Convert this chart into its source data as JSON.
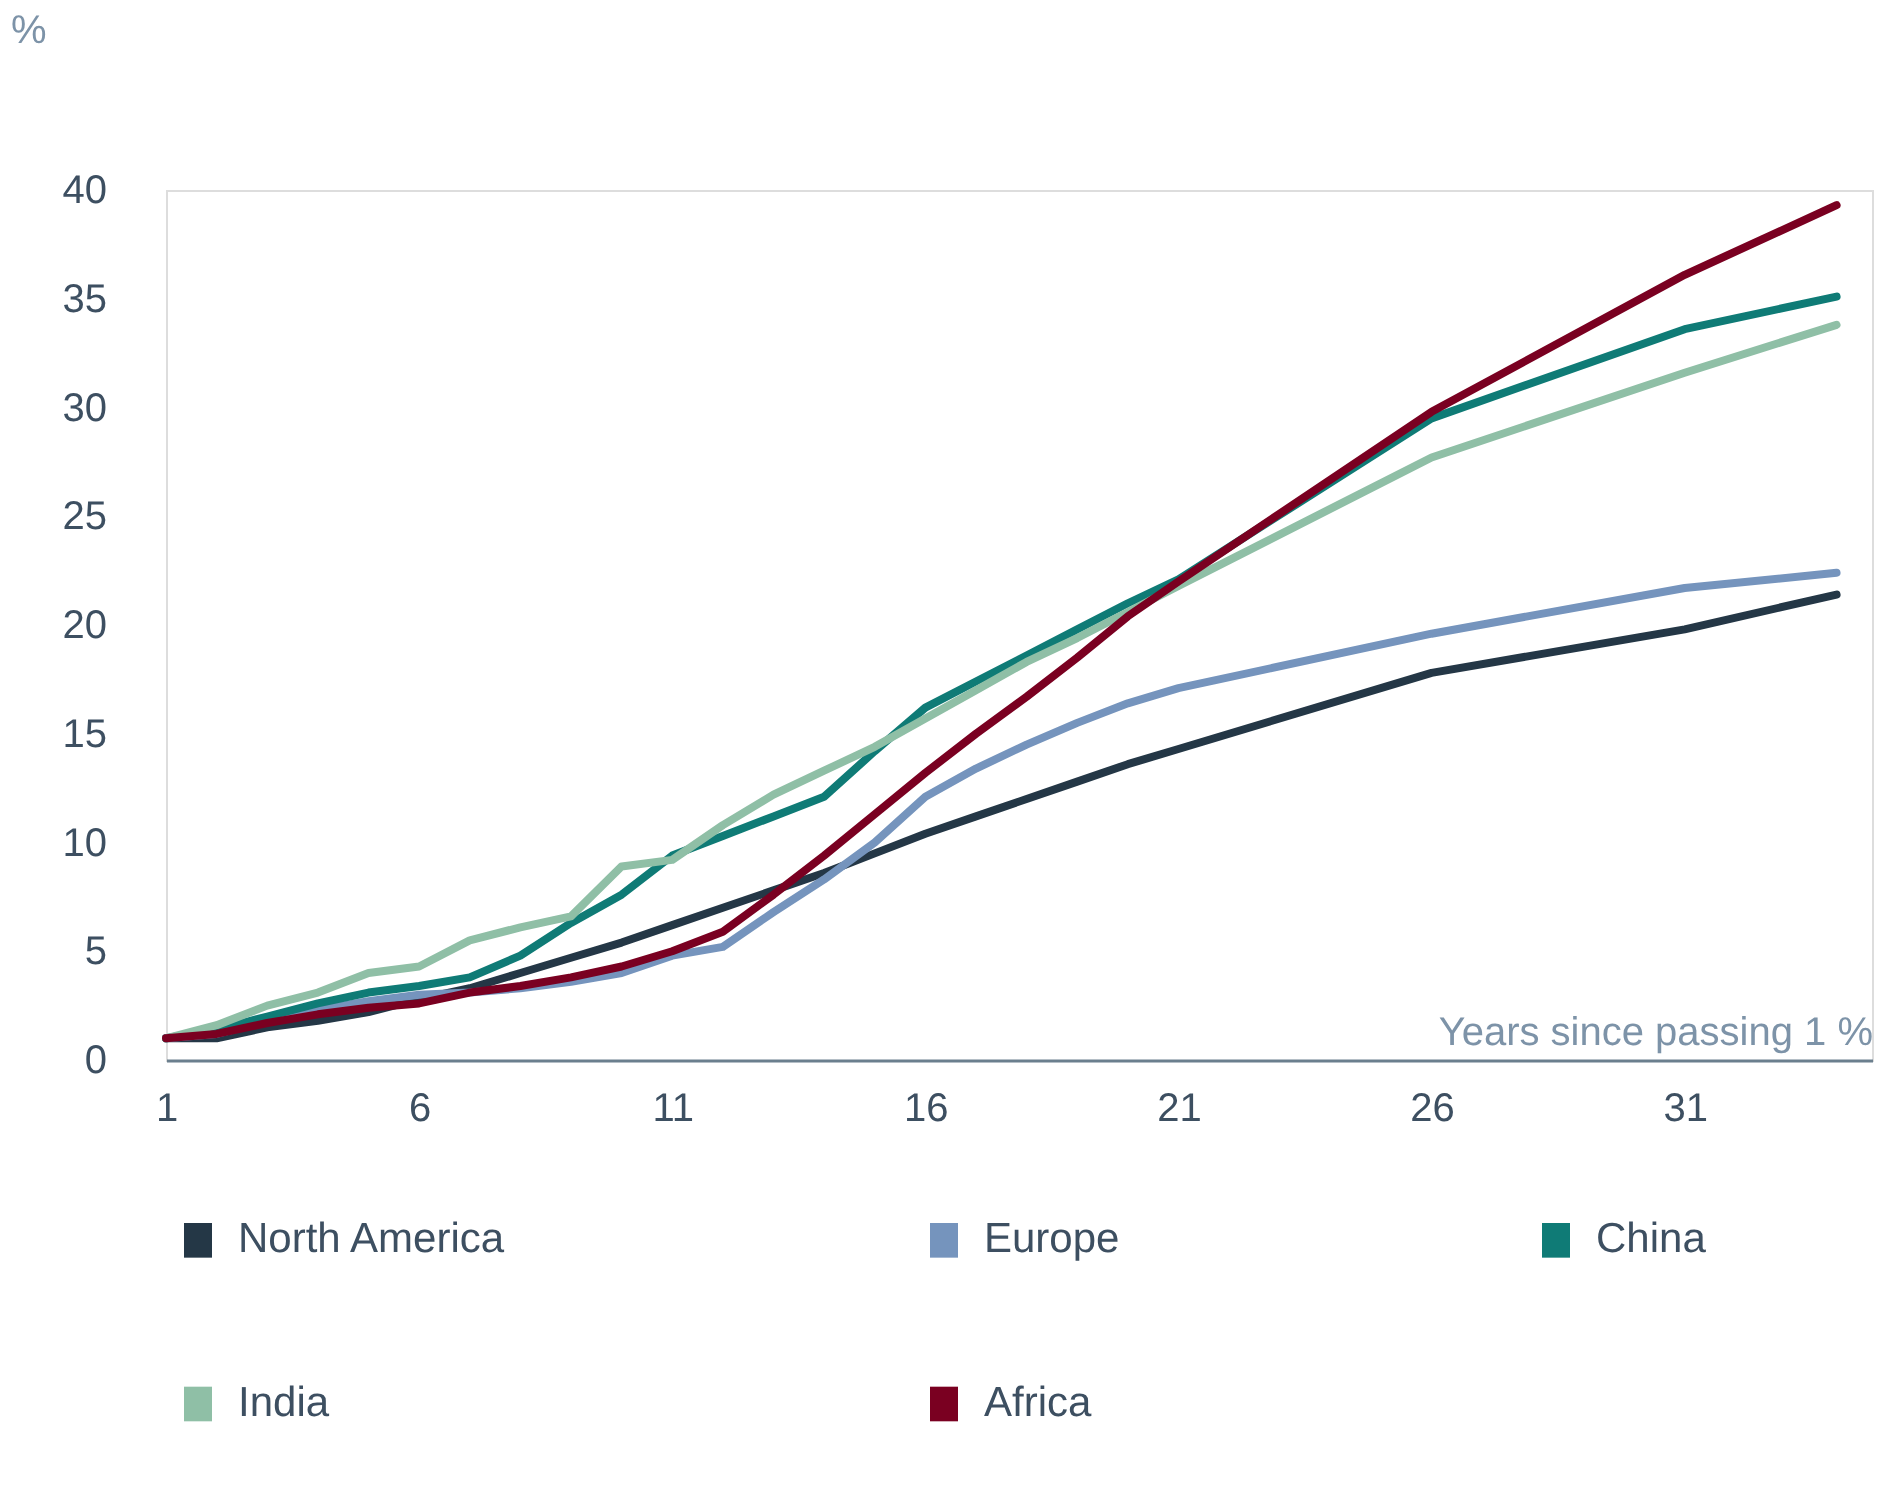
{
  "chart_data": {
    "type": "line",
    "xlabel": "Years since passing 1 %",
    "ylabel": "%",
    "x": [
      1,
      2,
      3,
      4,
      5,
      6,
      7,
      8,
      9,
      10,
      11,
      12,
      13,
      14,
      15,
      16,
      17,
      18,
      19,
      20,
      21,
      26,
      31,
      34
    ],
    "xlim": [
      1,
      34.7
    ],
    "xticks": [
      1,
      6,
      11,
      16,
      21,
      26,
      31
    ],
    "ylim": [
      0,
      40
    ],
    "yticks": [
      0,
      5,
      10,
      15,
      20,
      25,
      30,
      35,
      40
    ],
    "grid": false,
    "legend": "bottom",
    "line_style": "solid",
    "marker": "none",
    "series": [
      {
        "name": "North America",
        "color": "#243746",
        "values": [
          1,
          1,
          1.5,
          1.8,
          2.2,
          2.8,
          3.3,
          4,
          4.7,
          5.4,
          6.2,
          7,
          7.8,
          8.6,
          9.5,
          10.4,
          11.2,
          12,
          12.8,
          13.6,
          14.3,
          17.8,
          19.8,
          21.4
        ]
      },
      {
        "name": "Europe",
        "color": "#7594bd",
        "values": [
          1,
          1.2,
          1.8,
          2.3,
          2.7,
          3,
          3.1,
          3.3,
          3.6,
          4,
          4.8,
          5.2,
          6.8,
          8.3,
          10,
          12.1,
          13.4,
          14.5,
          15.5,
          16.4,
          17.1,
          19.6,
          21.7,
          22.4
        ]
      },
      {
        "name": "China",
        "color": "#0f7b76",
        "values": [
          1,
          1.4,
          2,
          2.6,
          3.1,
          3.4,
          3.8,
          4.8,
          6.3,
          7.6,
          9.4,
          10.3,
          11.2,
          12.1,
          14.2,
          16.2,
          17.4,
          18.6,
          19.8,
          21,
          22.1,
          29.5,
          33.6,
          35.1
        ]
      },
      {
        "name": "India",
        "color": "#8fbfa6",
        "values": [
          1,
          1.6,
          2.5,
          3.1,
          4,
          4.3,
          5.5,
          6.1,
          6.6,
          8.9,
          9.2,
          10.8,
          12.2,
          13.3,
          14.4,
          15.7,
          17,
          18.3,
          19.4,
          20.6,
          21.8,
          27.7,
          31.6,
          33.8
        ]
      },
      {
        "name": "Africa",
        "color": "#7a0021",
        "values": [
          1,
          1.2,
          1.7,
          2.1,
          2.4,
          2.6,
          3.1,
          3.4,
          3.8,
          4.3,
          5,
          5.9,
          7.6,
          9.4,
          11.3,
          13.2,
          15,
          16.7,
          18.5,
          20.4,
          22,
          29.8,
          36.1,
          39.3
        ]
      }
    ]
  }
}
